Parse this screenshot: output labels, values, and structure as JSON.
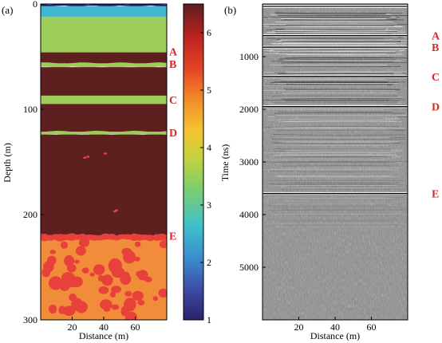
{
  "chart_data": [
    {
      "panel": "(a)",
      "type": "heatmap",
      "xlabel": "Distance (m)",
      "ylabel": "Depth (m)",
      "xlim": [
        0,
        80
      ],
      "ylim": [
        0,
        300
      ],
      "x_ticks": [
        20,
        40,
        60
      ],
      "y_ticks": [
        0,
        100,
        200,
        300
      ],
      "colorbar": {
        "range": [
          1,
          6.5
        ],
        "ticks": [
          1,
          2,
          3,
          4,
          5,
          6
        ],
        "colors": [
          "#2b1f6b",
          "#3d4fa8",
          "#3a8fd0",
          "#3fc1c9",
          "#7fcf6a",
          "#c8d23c",
          "#f4c430",
          "#f28a2a",
          "#e44124",
          "#b8231f",
          "#5e1e1e"
        ]
      },
      "layers": [
        {
          "top": 0,
          "bottom": 2,
          "value": 1.0,
          "color": "#2b1f6b"
        },
        {
          "top": 2,
          "bottom": 12,
          "value": 3.2,
          "color": "#41b6d0"
        },
        {
          "top": 12,
          "bottom": 46,
          "value": 3.9,
          "color": "#9ccc5a"
        },
        {
          "top": 46,
          "bottom": 56,
          "value": 6.3,
          "color": "#5e1f1f"
        },
        {
          "top": 56,
          "bottom": 60,
          "value": 3.9,
          "color": "#9ccc5a"
        },
        {
          "top": 60,
          "bottom": 87,
          "value": 6.3,
          "color": "#5e1f1f"
        },
        {
          "top": 87,
          "bottom": 95,
          "value": 3.9,
          "color": "#9ccc5a"
        },
        {
          "top": 95,
          "bottom": 121,
          "value": 6.3,
          "color": "#5e1f1f"
        },
        {
          "top": 121,
          "bottom": 124,
          "value": 3.9,
          "color": "#9ccc5a"
        },
        {
          "top": 124,
          "bottom": 220,
          "value": 6.3,
          "color": "#5e1f1f"
        },
        {
          "top": 220,
          "bottom": 300,
          "value": 5.2,
          "color": "#f08c3a"
        }
      ],
      "inclusion_color": "#e8403a",
      "reflectors": [
        {
          "label": "A",
          "depth": 45
        },
        {
          "label": "B",
          "depth": 57
        },
        {
          "label": "C",
          "depth": 91
        },
        {
          "label": "D",
          "depth": 122
        },
        {
          "label": "E",
          "depth": 220
        }
      ]
    },
    {
      "panel": "(b)",
      "type": "heatmap",
      "xlabel": "Distance (m)",
      "ylabel": "Time (ns)",
      "xlim": [
        0,
        80
      ],
      "ylim": [
        0,
        6000
      ],
      "x_ticks": [
        20,
        40,
        60
      ],
      "y_ticks": [
        1000,
        2000,
        3000,
        4000,
        5000
      ],
      "reflectors": [
        {
          "label": "A",
          "time": 600
        },
        {
          "label": "B",
          "time": 820
        },
        {
          "label": "C",
          "time": 1380
        },
        {
          "label": "D",
          "time": 1950
        },
        {
          "label": "E",
          "time": 3600
        }
      ]
    }
  ]
}
